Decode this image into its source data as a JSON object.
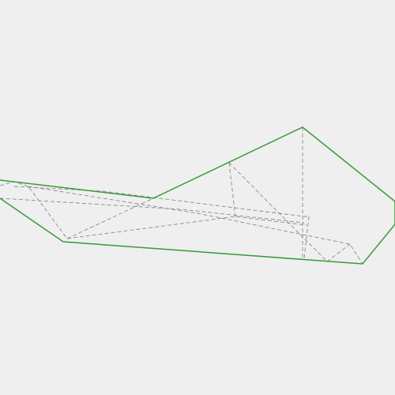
{
  "diagram": {
    "kind": "folded-paper-shape",
    "colors": {
      "background": "#efefef",
      "outline": "#3a9a3a",
      "fold_lines": "#8a8a8a"
    }
  }
}
